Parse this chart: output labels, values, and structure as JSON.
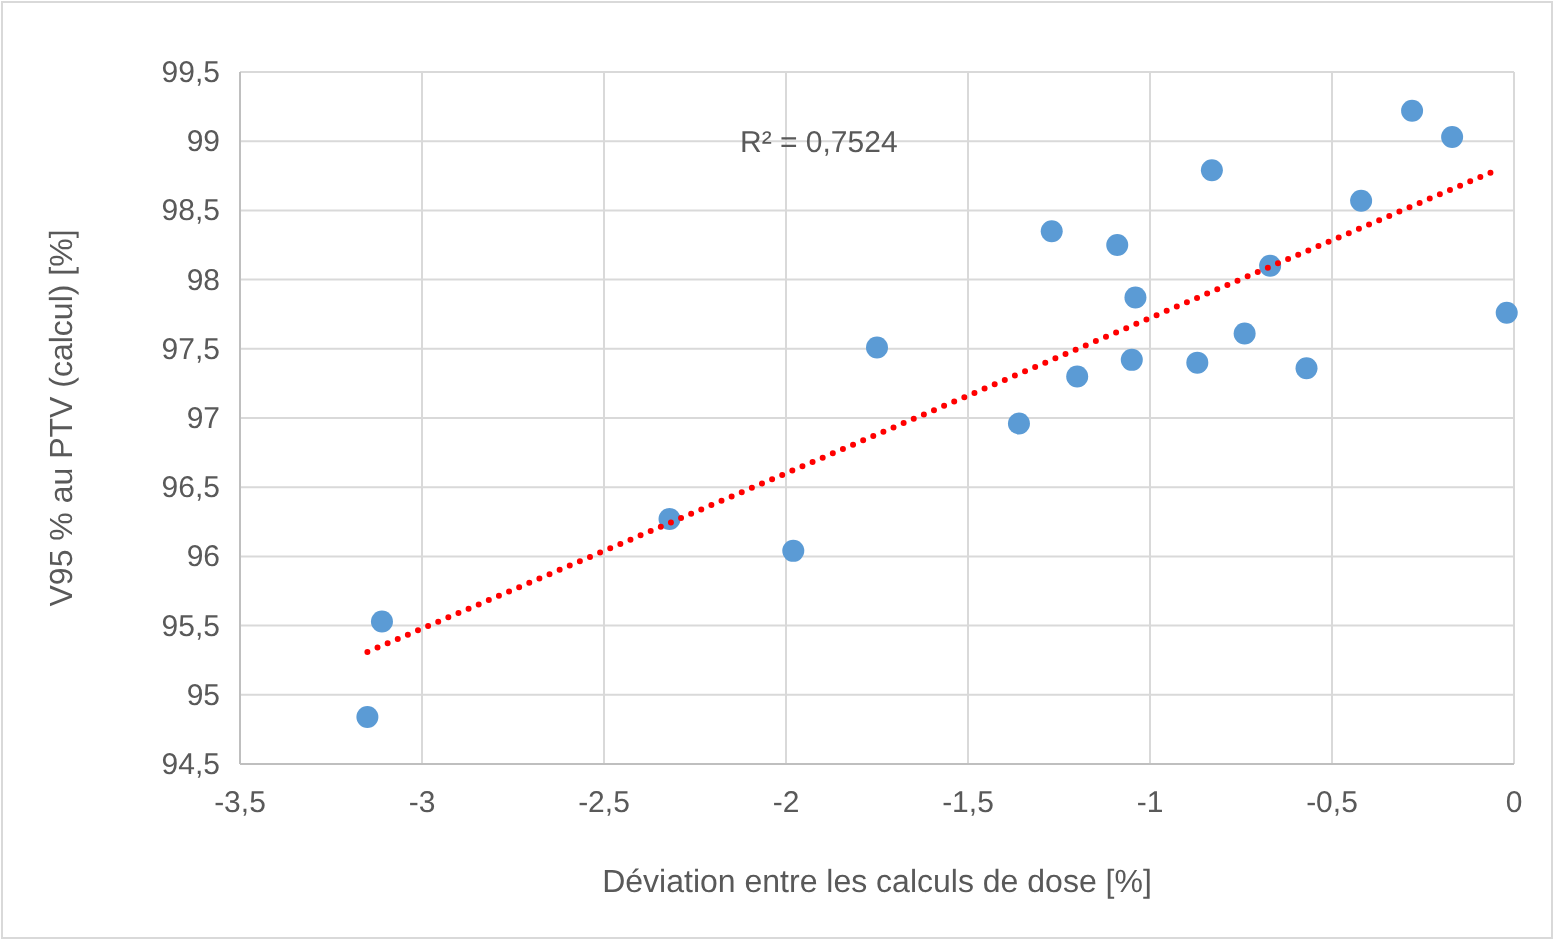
{
  "chart_data": {
    "type": "scatter",
    "xlabel": "Déviation entre les calculs de dose [%]",
    "ylabel": "V95 % au PTV (calcul) [%]",
    "annotations": [
      "R² = 0,7524"
    ],
    "xlim": [
      -3.5,
      0
    ],
    "xticks": [
      {
        "value": -3.5,
        "label": "-3,5"
      },
      -3,
      {
        "value": -2.5,
        "label": "-2,5"
      },
      -2,
      {
        "value": -1.5,
        "label": "-1,5"
      },
      -1,
      {
        "value": -0.5,
        "label": "-0,5"
      },
      0
    ],
    "ylim": [
      94.5,
      99.5
    ],
    "yticks": [
      {
        "value": 94.5,
        "label": "94,5"
      },
      95,
      {
        "value": 95.5,
        "label": "95,5"
      },
      96,
      {
        "value": 96.5,
        "label": "96,5"
      },
      97,
      {
        "value": 97.5,
        "label": "97,5"
      },
      98,
      {
        "value": 98.5,
        "label": "98,5"
      },
      99,
      {
        "value": 99.5,
        "label": "99,5"
      }
    ],
    "grid": true,
    "marker": "circle",
    "series": [
      {
        "color": "#5b9bd5",
        "x": [
          -3.15,
          -3.11,
          -2.32,
          -1.98,
          -1.75,
          -1.36,
          -1.27,
          -1.2,
          -1.09,
          -1.04,
          -1.05,
          -0.87,
          -0.83,
          -0.74,
          -0.67,
          -0.57,
          -0.42,
          -0.28,
          -0.17,
          -0.02
        ],
        "values": [
          94.84,
          95.53,
          96.27,
          96.04,
          97.51,
          96.96,
          98.35,
          97.3,
          98.25,
          97.87,
          97.42,
          97.4,
          98.79,
          97.61,
          98.1,
          97.36,
          98.57,
          99.22,
          99.03,
          97.76
        ]
      },
      {
        "type": "line",
        "color": "#ff0000",
        "line_style": "dotted",
        "marker": "none",
        "x": [
          -3.15,
          -0.04
        ],
        "values": [
          95.31,
          98.8
        ]
      }
    ]
  }
}
